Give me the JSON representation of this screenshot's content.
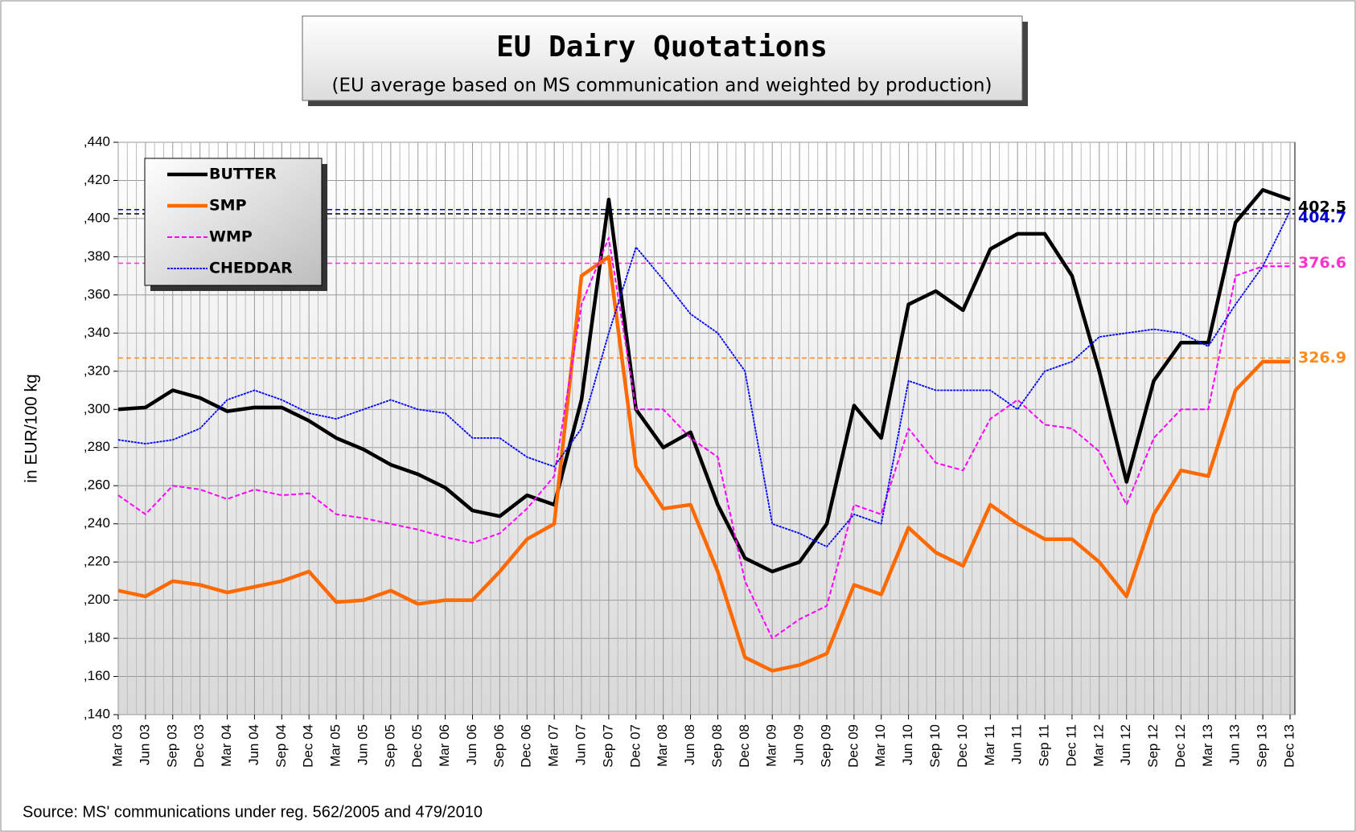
{
  "chart_data": {
    "type": "line",
    "title": "EU Dairy Quotations",
    "subtitle": "(EU average based on MS communication and weighted by production)",
    "y_label": "in EUR/100 kg",
    "source": "Source: MS' communications under reg. 562/2005 and 479/2010",
    "categories": [
      "Mar 03",
      "Jun 03",
      "Sep 03",
      "Dec 03",
      "Mar 04",
      "Jun 04",
      "Sep 04",
      "Dec 04",
      "Mar 05",
      "Jun 05",
      "Sep 05",
      "Dec 05",
      "Mar 06",
      "Jun 06",
      "Sep 06",
      "Dec 06",
      "Mar 07",
      "Jun 07",
      "Sep 07",
      "Dec 07",
      "Mar 08",
      "Jun 08",
      "Sep 08",
      "Dec 08",
      "Mar 09",
      "Jun 09",
      "Sep 09",
      "Dec 09",
      "Mar 10",
      "Jun 10",
      "Sep 10",
      "Dec 10",
      "Mar 11",
      "Jun 11",
      "Sep 11",
      "Dec 11",
      "Mar 12",
      "Jun 12",
      "Sep 12",
      "Dec 12",
      "Mar 13",
      "Jun 13",
      "Sep 13",
      "Dec 13"
    ],
    "series": [
      {
        "name": "BUTTER",
        "color": "#000000",
        "values": [
          300,
          301,
          310,
          306,
          299,
          301,
          301,
          294,
          285,
          279,
          271,
          266,
          259,
          247,
          244,
          255,
          250,
          305,
          410,
          300,
          280,
          288,
          250,
          222,
          215,
          220,
          240,
          302,
          285,
          355,
          362,
          352,
          384,
          392,
          392,
          370,
          320,
          262,
          315,
          335,
          335,
          398,
          415,
          410
        ]
      },
      {
        "name": "SMP",
        "color": "#ff6a00",
        "values": [
          205,
          202,
          210,
          208,
          204,
          207,
          210,
          215,
          199,
          200,
          205,
          198,
          200,
          200,
          215,
          232,
          240,
          370,
          380,
          270,
          248,
          250,
          215,
          170,
          163,
          166,
          172,
          208,
          203,
          238,
          225,
          218,
          250,
          240,
          232,
          232,
          220,
          202,
          245,
          268,
          265,
          310,
          325,
          325
        ]
      },
      {
        "name": "WMP",
        "color": "#ff00ff",
        "values": [
          255,
          245,
          260,
          258,
          253,
          258,
          255,
          256,
          245,
          243,
          240,
          237,
          233,
          230,
          235,
          248,
          265,
          355,
          390,
          300,
          300,
          285,
          275,
          210,
          180,
          190,
          197,
          250,
          245,
          290,
          272,
          268,
          295,
          305,
          292,
          290,
          278,
          250,
          285,
          300,
          300,
          370,
          375,
          375
        ]
      },
      {
        "name": "CHEDDAR",
        "color": "#0000ff",
        "values": [
          284,
          282,
          284,
          290,
          305,
          310,
          305,
          298,
          295,
          300,
          305,
          300,
          298,
          285,
          285,
          275,
          270,
          290,
          340,
          385,
          368,
          350,
          340,
          320,
          240,
          235,
          228,
          245,
          240,
          315,
          310,
          310,
          310,
          300,
          320,
          325,
          338,
          340,
          342,
          340,
          333,
          355,
          375,
          404
        ]
      }
    ],
    "reference_lines": [
      {
        "value": 402.5,
        "color": "#000000"
      },
      {
        "value": 404.7,
        "color": "#0000cc"
      },
      {
        "value": 376.6,
        "color": "#ff33cc"
      },
      {
        "value": 326.9,
        "color": "#ff8c1a"
      }
    ],
    "ylim": [
      140,
      440
    ],
    "yticks": [
      {
        "value": 140,
        "label": ",140"
      },
      {
        "value": 160,
        "label": ",160"
      },
      {
        "value": 180,
        "label": ",180"
      },
      {
        "value": 200,
        "label": ",200"
      },
      {
        "value": 220,
        "label": ",220"
      },
      {
        "value": 240,
        "label": ",240"
      },
      {
        "value": 260,
        "label": ",260"
      },
      {
        "value": 280,
        "label": ",280"
      },
      {
        "value": 300,
        "label": ",300"
      },
      {
        "value": 320,
        "label": ",320"
      },
      {
        "value": 340,
        "label": ",340"
      },
      {
        "value": 360,
        "label": ",360"
      },
      {
        "value": 380,
        "label": ",380"
      },
      {
        "value": 400,
        "label": ",400"
      },
      {
        "value": 420,
        "label": ",420"
      },
      {
        "value": 440,
        "label": ",440"
      }
    ],
    "grid": true,
    "legend": "upper left"
  }
}
